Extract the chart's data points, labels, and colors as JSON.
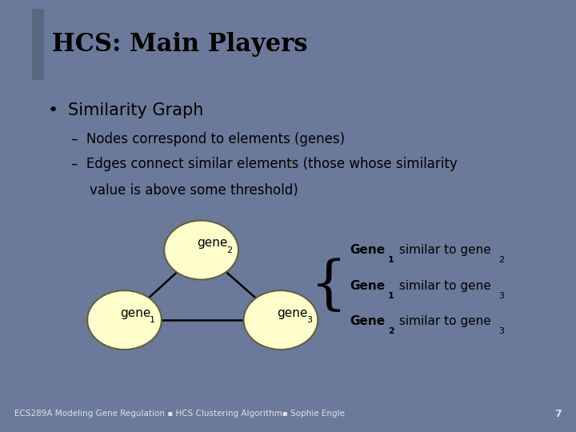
{
  "title": "HCS: Main Players",
  "title_bg": "#FFFFCC",
  "slide_bg": "#6B7A9A",
  "content_bg": "#C8CDD8",
  "title_left_bar_color": "#5A6880",
  "bullet_text": "Similarity Graph",
  "sub1": "Nodes correspond to elements (genes)",
  "sub2_line1": "Edges connect similar elements (those whose similarity",
  "sub2_line2": "value is above some threshold)",
  "node_fill": "#FFFFCC",
  "node_edge": "#808060",
  "footer": "ECS289A Modeling Gene Regulation ▪ HCS Clustering Algorithm▪ Sophie Engle",
  "footer_page": "7",
  "text_color": "#000000",
  "footer_color": "#E0E0E8"
}
